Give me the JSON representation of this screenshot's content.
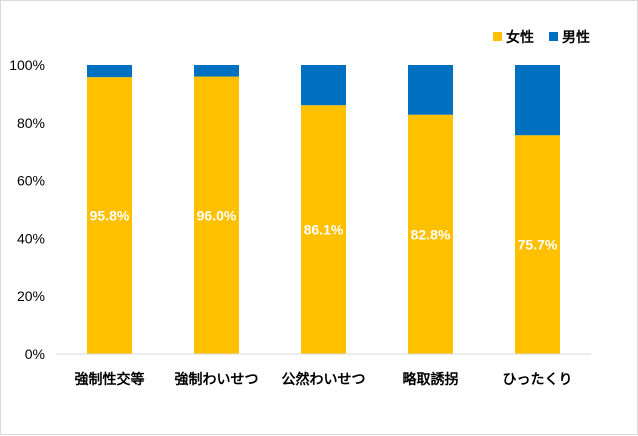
{
  "chart_data": {
    "type": "bar",
    "stacked": true,
    "categories": [
      "強制性交等",
      "強制わいせつ",
      "公然わいせつ",
      "略取誘拐",
      "ひったくり"
    ],
    "series": [
      {
        "name": "女性",
        "values": [
          95.8,
          96.0,
          86.1,
          82.8,
          75.7
        ],
        "color": "#FFC000",
        "labels": [
          "95.8%",
          "96.0%",
          "86.1%",
          "82.8%",
          "75.7%"
        ]
      },
      {
        "name": "男性",
        "values": [
          4.2,
          4.0,
          13.9,
          17.2,
          24.3
        ],
        "color": "#0070C0"
      }
    ],
    "yticks": [
      "0%",
      "20%",
      "40%",
      "60%",
      "80%",
      "100%"
    ],
    "ylim": [
      0,
      100
    ],
    "legend_position": "top-right",
    "grid": false
  }
}
